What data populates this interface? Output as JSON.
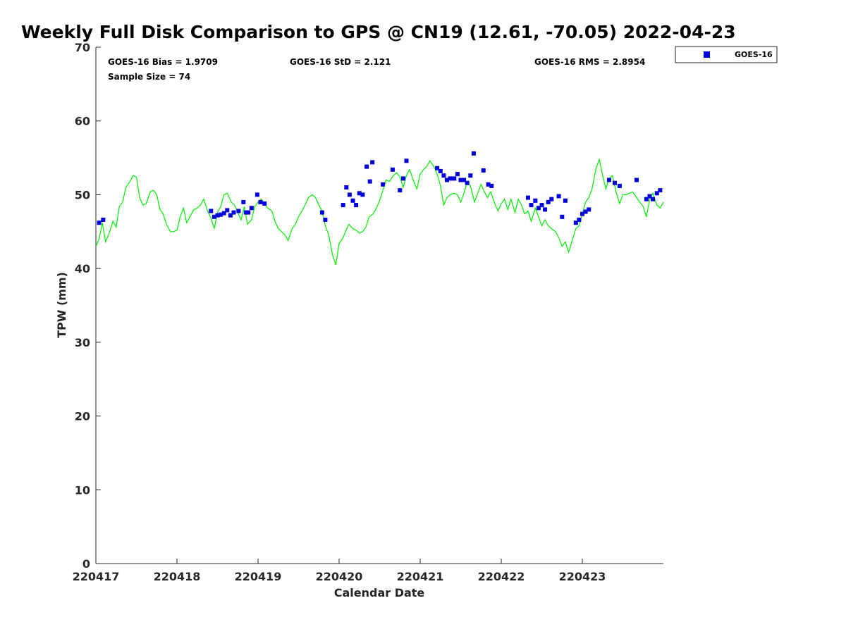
{
  "chart_data": {
    "type": "scatter",
    "title": "Weekly Full Disk Comparison to GPS @ CN19 (12.61, -70.05) 2022-04-23",
    "xlabel": "Calendar Date",
    "ylabel": "TPW (mm)",
    "xlim": [
      0,
      7
    ],
    "ylim": [
      0,
      70
    ],
    "x_ticks": [
      0,
      1,
      2,
      3,
      4,
      5,
      6
    ],
    "x_tick_labels": [
      "220417",
      "220418",
      "220419",
      "220420",
      "220421",
      "220422",
      "220423"
    ],
    "y_ticks": [
      0,
      10,
      20,
      30,
      40,
      50,
      60,
      70
    ],
    "grid": false,
    "legend_position": "outside-top-right",
    "stats": {
      "bias": "GOES-16 Bias = 1.9709",
      "std": "GOES-16 StD = 2.121",
      "rms": "GOES-16 RMS = 2.8954",
      "sample_size": "Sample Size = 74"
    },
    "series": [
      {
        "name": "GOES-16",
        "kind": "scatter",
        "marker": "square",
        "color": "#0000dd",
        "points": [
          [
            0.04,
            46.2
          ],
          [
            0.09,
            46.6
          ],
          [
            1.42,
            47.8
          ],
          [
            1.46,
            47.0
          ],
          [
            1.5,
            47.2
          ],
          [
            1.54,
            47.3
          ],
          [
            1.58,
            47.5
          ],
          [
            1.62,
            47.9
          ],
          [
            1.66,
            47.2
          ],
          [
            1.7,
            47.6
          ],
          [
            1.76,
            47.8
          ],
          [
            1.82,
            49.0
          ],
          [
            1.85,
            47.6
          ],
          [
            1.88,
            47.6
          ],
          [
            1.92,
            48.2
          ],
          [
            1.99,
            50.0
          ],
          [
            2.03,
            49.0
          ],
          [
            2.08,
            48.8
          ],
          [
            2.79,
            47.6
          ],
          [
            2.83,
            46.6
          ],
          [
            3.05,
            48.6
          ],
          [
            3.09,
            51.0
          ],
          [
            3.13,
            50.0
          ],
          [
            3.17,
            49.2
          ],
          [
            3.21,
            48.6
          ],
          [
            3.25,
            50.2
          ],
          [
            3.29,
            50.0
          ],
          [
            3.34,
            53.8
          ],
          [
            3.38,
            51.8
          ],
          [
            3.41,
            54.4
          ],
          [
            3.54,
            51.4
          ],
          [
            3.66,
            53.4
          ],
          [
            3.75,
            50.6
          ],
          [
            3.79,
            52.2
          ],
          [
            3.83,
            54.6
          ],
          [
            4.21,
            53.6
          ],
          [
            4.25,
            53.2
          ],
          [
            4.29,
            52.6
          ],
          [
            4.33,
            52.0
          ],
          [
            4.37,
            52.2
          ],
          [
            4.42,
            52.2
          ],
          [
            4.46,
            52.8
          ],
          [
            4.5,
            52.0
          ],
          [
            4.54,
            52.0
          ],
          [
            4.58,
            51.6
          ],
          [
            4.62,
            52.6
          ],
          [
            4.66,
            55.6
          ],
          [
            4.78,
            53.3
          ],
          [
            4.84,
            51.4
          ],
          [
            4.88,
            51.2
          ],
          [
            5.33,
            49.6
          ],
          [
            5.37,
            48.6
          ],
          [
            5.42,
            49.2
          ],
          [
            5.46,
            48.2
          ],
          [
            5.5,
            48.6
          ],
          [
            5.54,
            48.0
          ],
          [
            5.58,
            49.0
          ],
          [
            5.62,
            49.4
          ],
          [
            5.71,
            49.8
          ],
          [
            5.75,
            47.0
          ],
          [
            5.79,
            49.2
          ],
          [
            5.92,
            46.2
          ],
          [
            5.96,
            46.6
          ],
          [
            6.0,
            47.4
          ],
          [
            6.04,
            47.7
          ],
          [
            6.08,
            48.0
          ],
          [
            6.33,
            52.0
          ],
          [
            6.4,
            51.6
          ],
          [
            6.46,
            51.2
          ],
          [
            6.67,
            52.0
          ],
          [
            6.79,
            49.4
          ],
          [
            6.83,
            49.8
          ],
          [
            6.87,
            49.4
          ],
          [
            6.92,
            50.2
          ],
          [
            6.96,
            50.6
          ]
        ]
      },
      {
        "kind": "line",
        "color": "#00ee00",
        "points": [
          [
            0.0,
            43.0
          ],
          [
            0.04,
            44.0
          ],
          [
            0.08,
            46.2
          ],
          [
            0.12,
            43.6
          ],
          [
            0.17,
            45.0
          ],
          [
            0.21,
            46.4
          ],
          [
            0.25,
            45.6
          ],
          [
            0.29,
            48.4
          ],
          [
            0.33,
            49.0
          ],
          [
            0.37,
            51.0
          ],
          [
            0.42,
            51.8
          ],
          [
            0.46,
            52.6
          ],
          [
            0.5,
            52.4
          ],
          [
            0.54,
            49.6
          ],
          [
            0.58,
            48.6
          ],
          [
            0.62,
            48.8
          ],
          [
            0.67,
            50.4
          ],
          [
            0.71,
            50.6
          ],
          [
            0.75,
            50.0
          ],
          [
            0.79,
            48.0
          ],
          [
            0.83,
            47.4
          ],
          [
            0.87,
            46.0
          ],
          [
            0.92,
            45.0
          ],
          [
            0.96,
            45.0
          ],
          [
            1.0,
            45.2
          ],
          [
            1.04,
            47.0
          ],
          [
            1.08,
            48.2
          ],
          [
            1.12,
            46.2
          ],
          [
            1.17,
            47.2
          ],
          [
            1.21,
            48.0
          ],
          [
            1.25,
            48.2
          ],
          [
            1.29,
            48.6
          ],
          [
            1.33,
            49.4
          ],
          [
            1.37,
            48.0
          ],
          [
            1.42,
            46.8
          ],
          [
            1.46,
            45.4
          ],
          [
            1.5,
            47.6
          ],
          [
            1.54,
            48.4
          ],
          [
            1.58,
            50.0
          ],
          [
            1.62,
            50.2
          ],
          [
            1.67,
            49.0
          ],
          [
            1.71,
            48.6
          ],
          [
            1.75,
            47.6
          ],
          [
            1.79,
            46.6
          ],
          [
            1.83,
            48.4
          ],
          [
            1.87,
            46.0
          ],
          [
            1.92,
            46.6
          ],
          [
            1.96,
            48.4
          ],
          [
            2.0,
            49.0
          ],
          [
            2.04,
            49.4
          ],
          [
            2.08,
            48.8
          ],
          [
            2.12,
            48.2
          ],
          [
            2.17,
            47.8
          ],
          [
            2.21,
            46.4
          ],
          [
            2.25,
            45.4
          ],
          [
            2.29,
            45.0
          ],
          [
            2.33,
            44.6
          ],
          [
            2.37,
            43.8
          ],
          [
            2.42,
            45.4
          ],
          [
            2.46,
            46.0
          ],
          [
            2.5,
            47.0
          ],
          [
            2.54,
            47.8
          ],
          [
            2.58,
            48.6
          ],
          [
            2.62,
            49.6
          ],
          [
            2.67,
            50.0
          ],
          [
            2.71,
            49.6
          ],
          [
            2.75,
            48.6
          ],
          [
            2.79,
            47.8
          ],
          [
            2.83,
            45.8
          ],
          [
            2.87,
            44.6
          ],
          [
            2.92,
            41.8
          ],
          [
            2.96,
            40.5
          ],
          [
            3.0,
            43.4
          ],
          [
            3.04,
            44.0
          ],
          [
            3.08,
            45.0
          ],
          [
            3.12,
            46.0
          ],
          [
            3.17,
            45.4
          ],
          [
            3.21,
            45.2
          ],
          [
            3.25,
            44.8
          ],
          [
            3.29,
            45.0
          ],
          [
            3.33,
            45.6
          ],
          [
            3.37,
            47.0
          ],
          [
            3.42,
            47.4
          ],
          [
            3.46,
            48.2
          ],
          [
            3.5,
            49.2
          ],
          [
            3.54,
            50.6
          ],
          [
            3.58,
            52.0
          ],
          [
            3.62,
            51.8
          ],
          [
            3.67,
            52.6
          ],
          [
            3.71,
            53.0
          ],
          [
            3.75,
            52.4
          ],
          [
            3.79,
            51.0
          ],
          [
            3.83,
            52.6
          ],
          [
            3.87,
            53.4
          ],
          [
            3.92,
            51.8
          ],
          [
            3.96,
            50.8
          ],
          [
            4.0,
            52.8
          ],
          [
            4.04,
            53.4
          ],
          [
            4.08,
            53.8
          ],
          [
            4.12,
            54.6
          ],
          [
            4.17,
            53.8
          ],
          [
            4.21,
            52.8
          ],
          [
            4.25,
            51.2
          ],
          [
            4.29,
            48.6
          ],
          [
            4.33,
            49.6
          ],
          [
            4.37,
            50.0
          ],
          [
            4.42,
            50.2
          ],
          [
            4.46,
            50.0
          ],
          [
            4.5,
            49.0
          ],
          [
            4.54,
            50.2
          ],
          [
            4.58,
            51.8
          ],
          [
            4.62,
            51.2
          ],
          [
            4.67,
            49.0
          ],
          [
            4.71,
            50.2
          ],
          [
            4.75,
            51.4
          ],
          [
            4.79,
            50.4
          ],
          [
            4.83,
            49.6
          ],
          [
            4.87,
            50.4
          ],
          [
            4.92,
            48.8
          ],
          [
            4.96,
            47.8
          ],
          [
            5.0,
            48.8
          ],
          [
            5.04,
            49.4
          ],
          [
            5.08,
            48.0
          ],
          [
            5.12,
            49.4
          ],
          [
            5.17,
            47.6
          ],
          [
            5.21,
            49.4
          ],
          [
            5.25,
            48.6
          ],
          [
            5.29,
            47.4
          ],
          [
            5.33,
            47.8
          ],
          [
            5.37,
            46.4
          ],
          [
            5.42,
            48.2
          ],
          [
            5.46,
            47.0
          ],
          [
            5.5,
            45.8
          ],
          [
            5.54,
            46.6
          ],
          [
            5.58,
            45.8
          ],
          [
            5.62,
            45.4
          ],
          [
            5.67,
            45.0
          ],
          [
            5.71,
            44.2
          ],
          [
            5.75,
            43.0
          ],
          [
            5.79,
            43.6
          ],
          [
            5.83,
            42.2
          ],
          [
            5.87,
            43.6
          ],
          [
            5.92,
            45.4
          ],
          [
            5.96,
            45.8
          ],
          [
            6.0,
            47.4
          ],
          [
            6.04,
            49.0
          ],
          [
            6.08,
            49.6
          ],
          [
            6.12,
            50.8
          ],
          [
            6.17,
            53.6
          ],
          [
            6.21,
            54.8
          ],
          [
            6.25,
            52.6
          ],
          [
            6.29,
            50.8
          ],
          [
            6.33,
            52.2
          ],
          [
            6.37,
            52.6
          ],
          [
            6.42,
            50.2
          ],
          [
            6.46,
            48.8
          ],
          [
            6.5,
            50.0
          ],
          [
            6.54,
            50.0
          ],
          [
            6.58,
            50.2
          ],
          [
            6.62,
            50.4
          ],
          [
            6.67,
            49.6
          ],
          [
            6.71,
            49.0
          ],
          [
            6.75,
            48.4
          ],
          [
            6.79,
            47.0
          ],
          [
            6.83,
            49.4
          ],
          [
            6.87,
            50.2
          ],
          [
            6.92,
            48.6
          ],
          [
            6.96,
            48.2
          ],
          [
            7.0,
            49.0
          ]
        ]
      }
    ]
  }
}
